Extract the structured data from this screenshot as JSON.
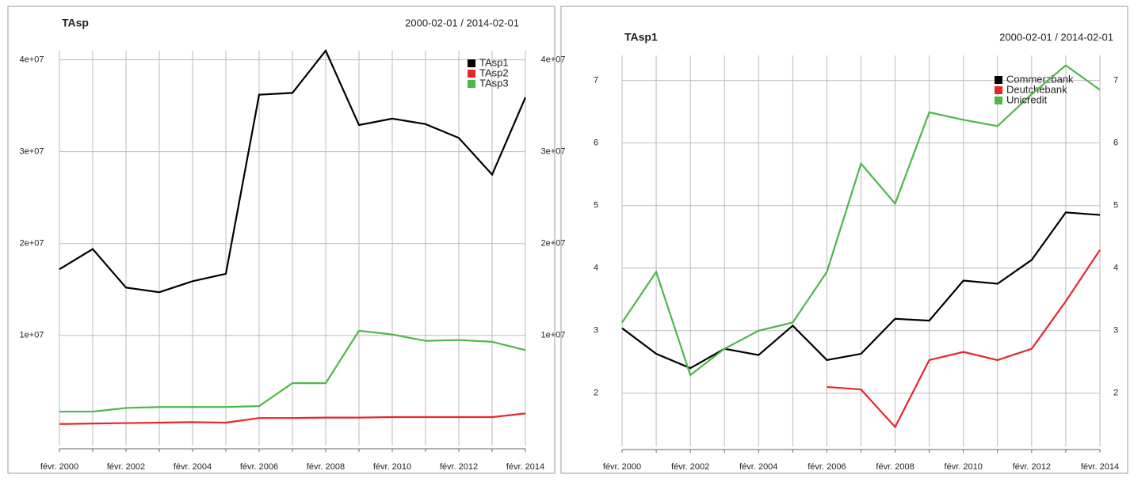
{
  "chart_data": [
    {
      "type": "line",
      "title": "TAsp",
      "subtitle": "2000-02-01 / 2014-02-01",
      "categories": [
        "févr. 2000",
        null,
        "févr. 2002",
        null,
        "févr. 2004",
        null,
        "févr. 2006",
        null,
        "févr. 2008",
        null,
        "févr. 2010",
        null,
        "févr. 2012",
        null,
        "févr. 2014"
      ],
      "series": [
        {
          "name": "TAsp1",
          "color": "#000000",
          "values": [
            17200000,
            19400000,
            15200000,
            14700000,
            15900000,
            16700000,
            36200000,
            36400000,
            41000000,
            32900000,
            33600000,
            33000000,
            31500000,
            27500000,
            35900000
          ]
        },
        {
          "name": "TAsp2",
          "color": "#e8262a",
          "values": [
            350000,
            400000,
            450000,
            500000,
            550000,
            500000,
            1000000,
            1000000,
            1050000,
            1050000,
            1100000,
            1100000,
            1100000,
            1100000,
            1500000
          ]
        },
        {
          "name": "TAsp3",
          "color": "#4db848",
          "values": [
            1700000,
            1700000,
            2100000,
            2200000,
            2200000,
            2200000,
            2300000,
            4800000,
            4800000,
            10500000,
            10100000,
            9400000,
            9500000,
            9300000,
            8400000
          ]
        }
      ],
      "ylim": [
        -2000000,
        41000000
      ],
      "yticks": [
        {
          "value": 10000000,
          "label": "1e+07"
        },
        {
          "value": 20000000,
          "label": "2e+07"
        },
        {
          "value": 30000000,
          "label": "3e+07"
        },
        {
          "value": 40000000,
          "label": "4e+07"
        }
      ],
      "grid": true,
      "legend": "top-right"
    },
    {
      "type": "line",
      "title": "TAsp1",
      "subtitle": "2000-02-01 / 2014-02-01",
      "categories": [
        "févr. 2000",
        null,
        "févr. 2002",
        null,
        "févr. 2004",
        null,
        "févr. 2006",
        null,
        "févr. 2008",
        null,
        "févr. 2010",
        null,
        "févr. 2012",
        null,
        "févr. 2014"
      ],
      "series": [
        {
          "name": "Commerzbank",
          "color": "#000000",
          "values": [
            3.04,
            2.63,
            2.4,
            2.71,
            2.61,
            3.08,
            2.53,
            2.63,
            3.19,
            3.16,
            3.8,
            3.75,
            4.13,
            4.89,
            4.85
          ]
        },
        {
          "name": "Deutchebank",
          "color": "#e8262a",
          "values": [
            null,
            null,
            null,
            null,
            null,
            null,
            2.1,
            2.06,
            1.46,
            2.53,
            2.66,
            2.53,
            2.71,
            3.47,
            4.29
          ]
        },
        {
          "name": "Unicredit",
          "color": "#4db848",
          "values": [
            3.13,
            3.94,
            2.29,
            2.71,
            3.0,
            3.13,
            3.94,
            5.67,
            5.03,
            6.49,
            6.37,
            6.27,
            6.78,
            7.24,
            6.85
          ]
        }
      ],
      "ylim": [
        1.15,
        7.4
      ],
      "yticks": [
        2,
        3,
        4,
        5,
        6,
        7
      ],
      "grid": true,
      "legend": "top-right"
    }
  ]
}
